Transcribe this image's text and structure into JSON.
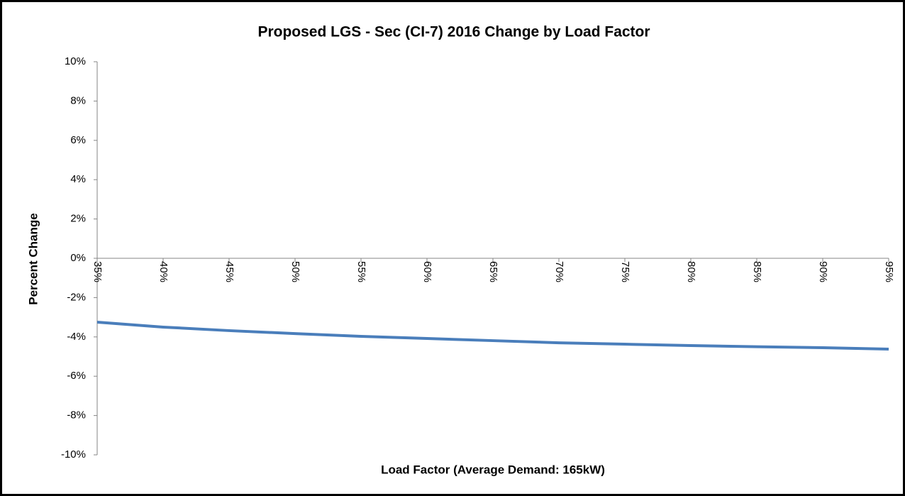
{
  "chart_data": {
    "type": "line",
    "title": "Proposed LGS - Sec (CI-7) 2016 Change by Load Factor",
    "xlabel": "Load Factor (Average Demand: 165kW)",
    "ylabel": "Percent Change",
    "x": [
      35,
      40,
      45,
      50,
      55,
      60,
      65,
      70,
      75,
      80,
      85,
      90,
      95
    ],
    "values": [
      -3.25,
      -3.5,
      -3.68,
      -3.83,
      -3.97,
      -4.08,
      -4.19,
      -4.3,
      -4.37,
      -4.44,
      -4.5,
      -4.55,
      -4.62
    ],
    "color": "#4a7ebb",
    "xlim": [
      35,
      95
    ],
    "xticks": [
      {
        "value": 35,
        "label": "35%"
      },
      {
        "value": 40,
        "label": "40%"
      },
      {
        "value": 45,
        "label": "45%"
      },
      {
        "value": 50,
        "label": "50%"
      },
      {
        "value": 55,
        "label": "55%"
      },
      {
        "value": 60,
        "label": "60%"
      },
      {
        "value": 65,
        "label": "65%"
      },
      {
        "value": 70,
        "label": "70%"
      },
      {
        "value": 75,
        "label": "75%"
      },
      {
        "value": 80,
        "label": "80%"
      },
      {
        "value": 85,
        "label": "85%"
      },
      {
        "value": 90,
        "label": "90%"
      },
      {
        "value": 95,
        "label": "95%"
      }
    ],
    "ylim": [
      -10,
      10
    ],
    "yticks": [
      {
        "value": 10,
        "label": "10%"
      },
      {
        "value": 8,
        "label": "8%"
      },
      {
        "value": 6,
        "label": "6%"
      },
      {
        "value": 4,
        "label": "4%"
      },
      {
        "value": 2,
        "label": "2%"
      },
      {
        "value": 0,
        "label": "0%"
      },
      {
        "value": -2,
        "label": "-2%"
      },
      {
        "value": -4,
        "label": "-4%"
      },
      {
        "value": -6,
        "label": "-6%"
      },
      {
        "value": -8,
        "label": "-8%"
      },
      {
        "value": -10,
        "label": "-10%"
      }
    ],
    "grid": false
  }
}
